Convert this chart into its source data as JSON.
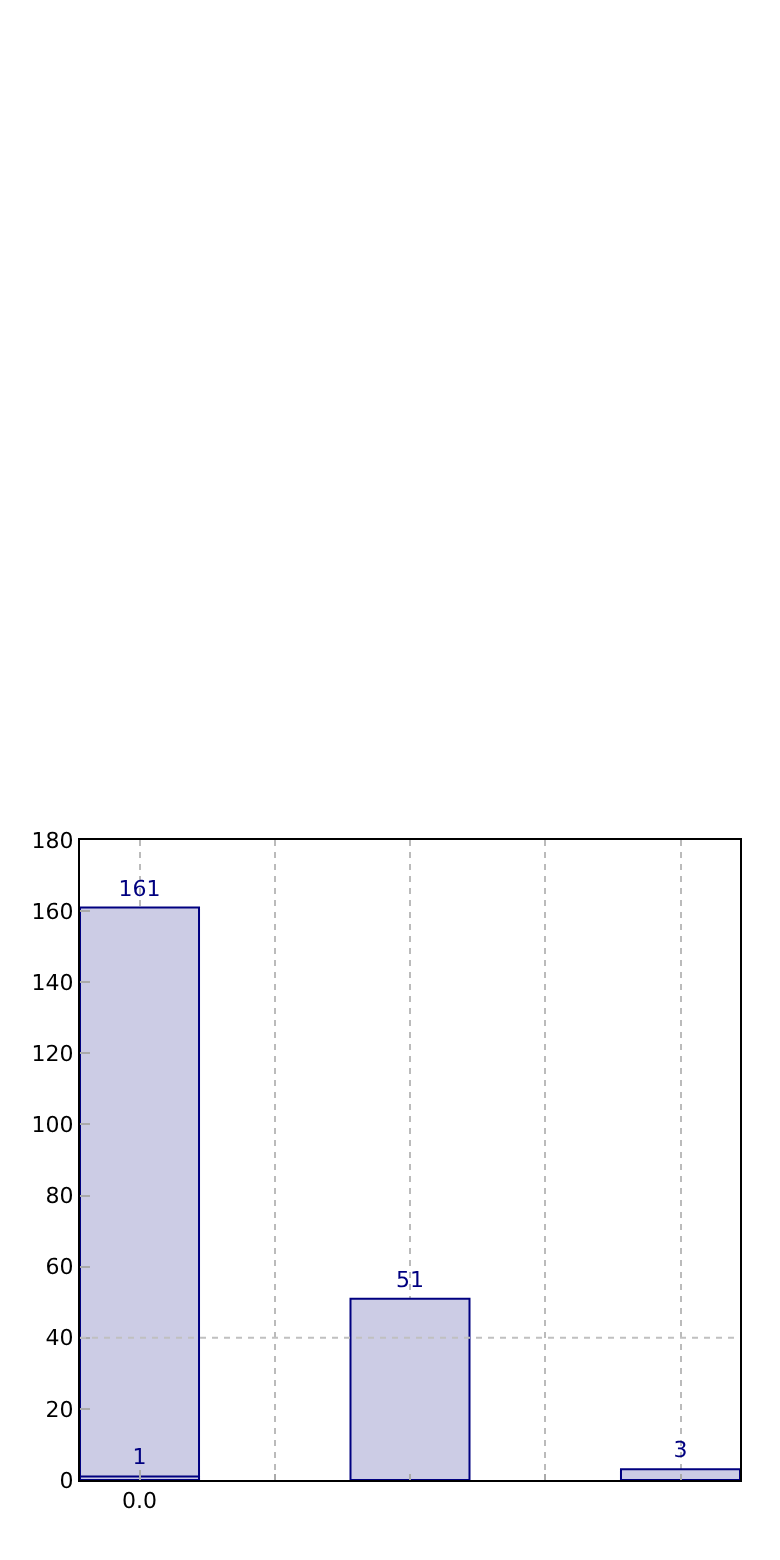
{
  "chart_data": {
    "type": "bar",
    "categories": [
      "0.0",
      null,
      null
    ],
    "series": [
      {
        "color": "#cccce5",
        "values": [
          161,
          51,
          3
        ],
        "value_labels": [
          "161",
          "51",
          "3"
        ]
      },
      {
        "color": "#cccce5",
        "values": [
          1,
          null,
          null
        ],
        "value_labels": [
          "1",
          null,
          null
        ]
      }
    ],
    "ylim": [
      0,
      180
    ],
    "yticks": [
      0,
      20,
      40,
      60,
      80,
      100,
      120,
      140,
      160,
      180
    ],
    "grid": "x",
    "ref_lines": [
      {
        "axis": "y",
        "value": 40,
        "color": "#c0c0c0",
        "line_style": "dotted"
      }
    ]
  }
}
